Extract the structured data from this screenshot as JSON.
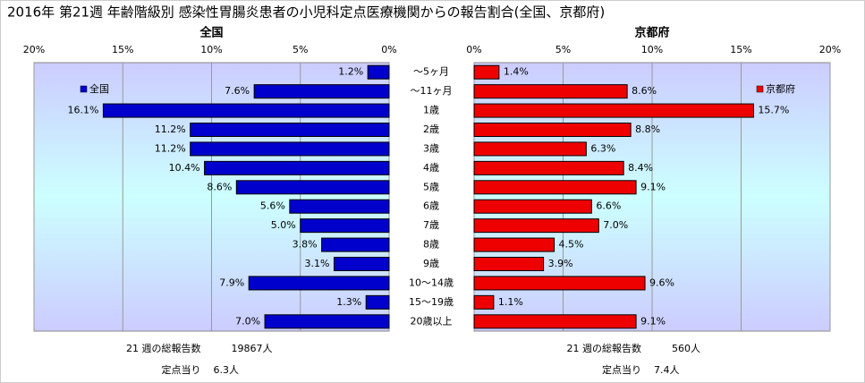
{
  "chart_data": {
    "type": "butterfly_bar",
    "title": "2016年 第21週 年齢階級別 感染性胃腸炎患者の小児科定点医療機関からの報告割合(全国、京都府)",
    "categories": [
      "～5ヶ月",
      "～11ヶ月",
      "1歳",
      "2歳",
      "3歳",
      "4歳",
      "5歳",
      "6歳",
      "7歳",
      "8歳",
      "9歳",
      "10～14歳",
      "15～19歳",
      "20歳以上"
    ],
    "xlim": [
      0,
      20
    ],
    "xticks": [
      {
        "value": 0,
        "label": "0%"
      },
      {
        "value": 5,
        "label": "5%"
      },
      {
        "value": 10,
        "label": "10%"
      },
      {
        "value": 15,
        "label": "15%"
      },
      {
        "value": 20,
        "label": "20%"
      }
    ],
    "grid": true,
    "series": [
      {
        "name": "全国",
        "color": "#0000cc",
        "legend": "upper-left",
        "values": [
          1.2,
          7.6,
          16.1,
          11.2,
          11.2,
          10.4,
          8.6,
          5.6,
          5.0,
          3.8,
          3.1,
          7.9,
          1.3,
          7.0
        ],
        "value_labels": [
          "1.2%",
          "7.6%",
          "16.1%",
          "11.2%",
          "11.2%",
          "10.4%",
          "8.6%",
          "5.6%",
          "5.0%",
          "3.8%",
          "3.1%",
          "7.9%",
          "1.3%",
          "7.0%"
        ],
        "notes": [
          [
            "21 週の総報告数",
            "19867人"
          ],
          [
            "定点当り",
            "6.3人"
          ]
        ]
      },
      {
        "name": "京都府",
        "color": "#ee0000",
        "legend": "upper-right",
        "values": [
          1.4,
          8.6,
          15.7,
          8.8,
          6.3,
          8.4,
          9.1,
          6.6,
          7.0,
          4.5,
          3.9,
          9.6,
          1.1,
          9.1
        ],
        "value_labels": [
          "1.4%",
          "8.6%",
          "15.7%",
          "8.8%",
          "6.3%",
          "8.4%",
          "9.1%",
          "6.6%",
          "7.0%",
          "4.5%",
          "3.9%",
          "9.6%",
          "1.1%",
          "9.1%"
        ],
        "notes": [
          [
            "21 週の総報告数",
            "560人"
          ],
          [
            "定点当り",
            "7.4人"
          ]
        ]
      }
    ]
  }
}
